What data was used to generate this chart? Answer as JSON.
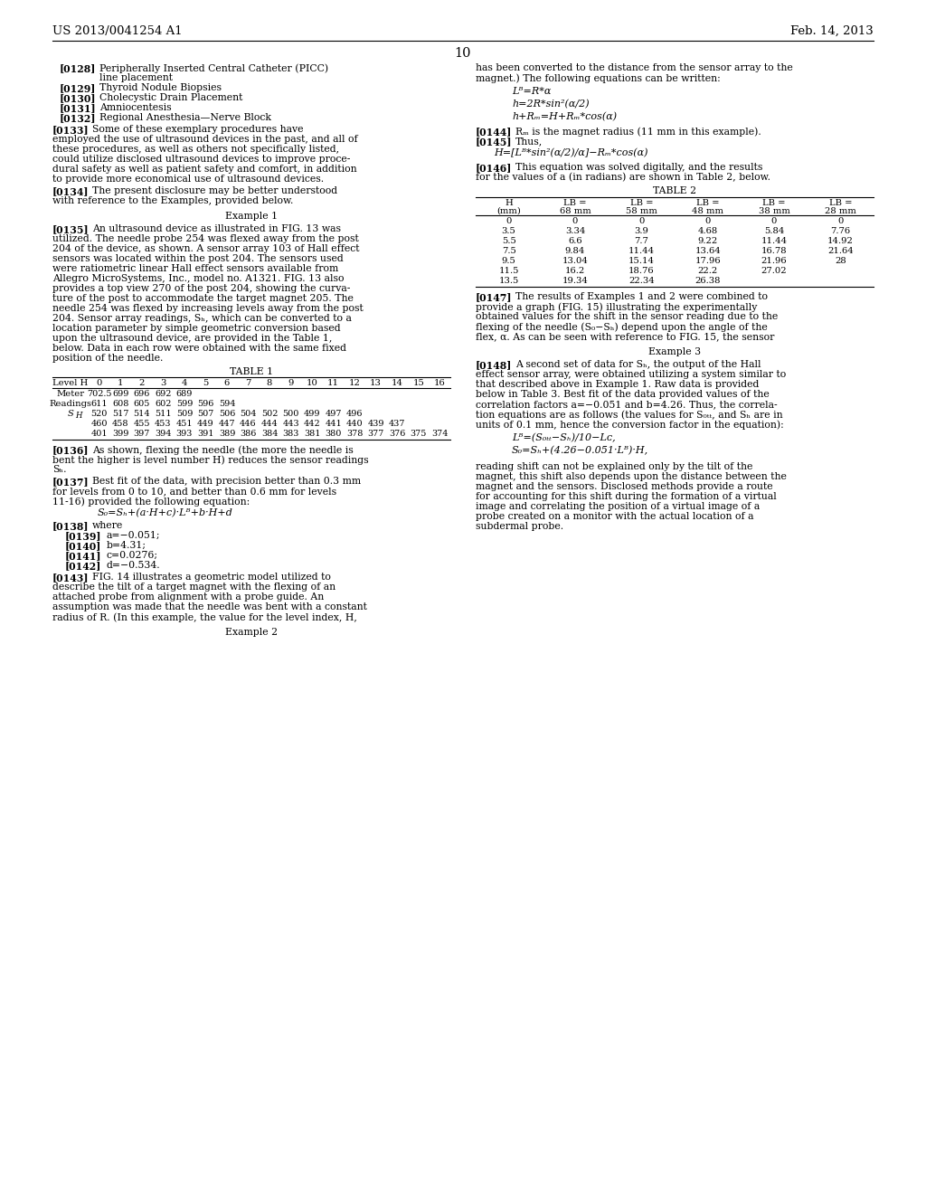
{
  "bg_color": "#ffffff",
  "header_left": "US 2013/0041254 A1",
  "header_right": "Feb. 14, 2013",
  "page_number": "10",
  "table1_headers": [
    "Level H",
    "0",
    "1",
    "2",
    "3",
    "4",
    "5",
    "6",
    "7",
    "8",
    "9",
    "10",
    "11",
    "12",
    "13",
    "14",
    "15",
    "16"
  ],
  "table1_data": [
    [
      "Meter",
      "702.5",
      "699",
      "696",
      "692",
      "689",
      "",
      "",
      "",
      "",
      "",
      "",
      "",
      "",
      "",
      "",
      "",
      ""
    ],
    [
      "Readings",
      "611",
      "608",
      "605",
      "602",
      "599",
      "596",
      "594",
      "",
      "",
      "",
      "",
      "",
      "",
      "",
      "",
      "",
      ""
    ],
    [
      "SH",
      "520",
      "517",
      "514",
      "511",
      "509",
      "507",
      "506",
      "504",
      "502",
      "500",
      "499",
      "497",
      "496",
      "",
      "",
      "",
      ""
    ],
    [
      "",
      "460",
      "458",
      "455",
      "453",
      "451",
      "449",
      "447",
      "446",
      "444",
      "443",
      "442",
      "441",
      "440",
      "439",
      "437",
      "",
      ""
    ],
    [
      "",
      "401",
      "399",
      "397",
      "394",
      "393",
      "391",
      "389",
      "386",
      "384",
      "383",
      "381",
      "380",
      "378",
      "377",
      "376",
      "375",
      "374"
    ]
  ],
  "table2_headers": [
    "H\n(mm)",
    "LB =\n68 mm",
    "LB =\n58 mm",
    "LB =\n48 mm",
    "LB =\n38 mm",
    "LB =\n28 mm"
  ],
  "table2_data": [
    [
      "0",
      "0",
      "0",
      "0",
      "0",
      "0"
    ],
    [
      "3.5",
      "3.34",
      "3.9",
      "4.68",
      "5.84",
      "7.76"
    ],
    [
      "5.5",
      "6.6",
      "7.7",
      "9.22",
      "11.44",
      "14.92"
    ],
    [
      "7.5",
      "9.84",
      "11.44",
      "13.64",
      "16.78",
      "21.64"
    ],
    [
      "9.5",
      "13.04",
      "15.14",
      "17.96",
      "21.96",
      "28"
    ],
    [
      "11.5",
      "16.2",
      "18.76",
      "22.2",
      "27.02",
      ""
    ],
    [
      "13.5",
      "19.34",
      "22.34",
      "26.38",
      "",
      ""
    ]
  ]
}
